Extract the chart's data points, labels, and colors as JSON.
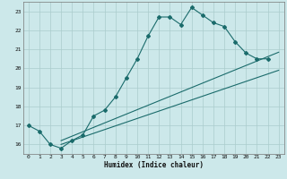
{
  "xlabel": "Humidex (Indice chaleur)",
  "bg_color": "#cce8ea",
  "grid_color": "#aacccc",
  "line_color": "#1a6b6b",
  "ylim": [
    15.5,
    23.5
  ],
  "xlim": [
    -0.5,
    23.5
  ],
  "yticks": [
    16,
    17,
    18,
    19,
    20,
    21,
    22,
    23
  ],
  "xticks": [
    0,
    1,
    2,
    3,
    4,
    5,
    6,
    7,
    8,
    9,
    10,
    11,
    12,
    13,
    14,
    15,
    16,
    17,
    18,
    19,
    20,
    21,
    22,
    23
  ],
  "curve_x": [
    0,
    1,
    2,
    3,
    4,
    5,
    6,
    7,
    8,
    9,
    10,
    11,
    12,
    13,
    14,
    15,
    16,
    17,
    18,
    19,
    20,
    21,
    22
  ],
  "curve_y": [
    17.0,
    16.7,
    16.0,
    15.8,
    16.2,
    16.5,
    17.5,
    17.8,
    18.5,
    19.5,
    20.5,
    21.7,
    22.7,
    22.7,
    22.3,
    23.2,
    22.8,
    22.4,
    22.2,
    21.4,
    20.8,
    20.5,
    20.5
  ],
  "line1_x": [
    3,
    23
  ],
  "line1_y": [
    16.0,
    19.9
  ],
  "line2_x": [
    3,
    23
  ],
  "line2_y": [
    16.2,
    20.85
  ]
}
